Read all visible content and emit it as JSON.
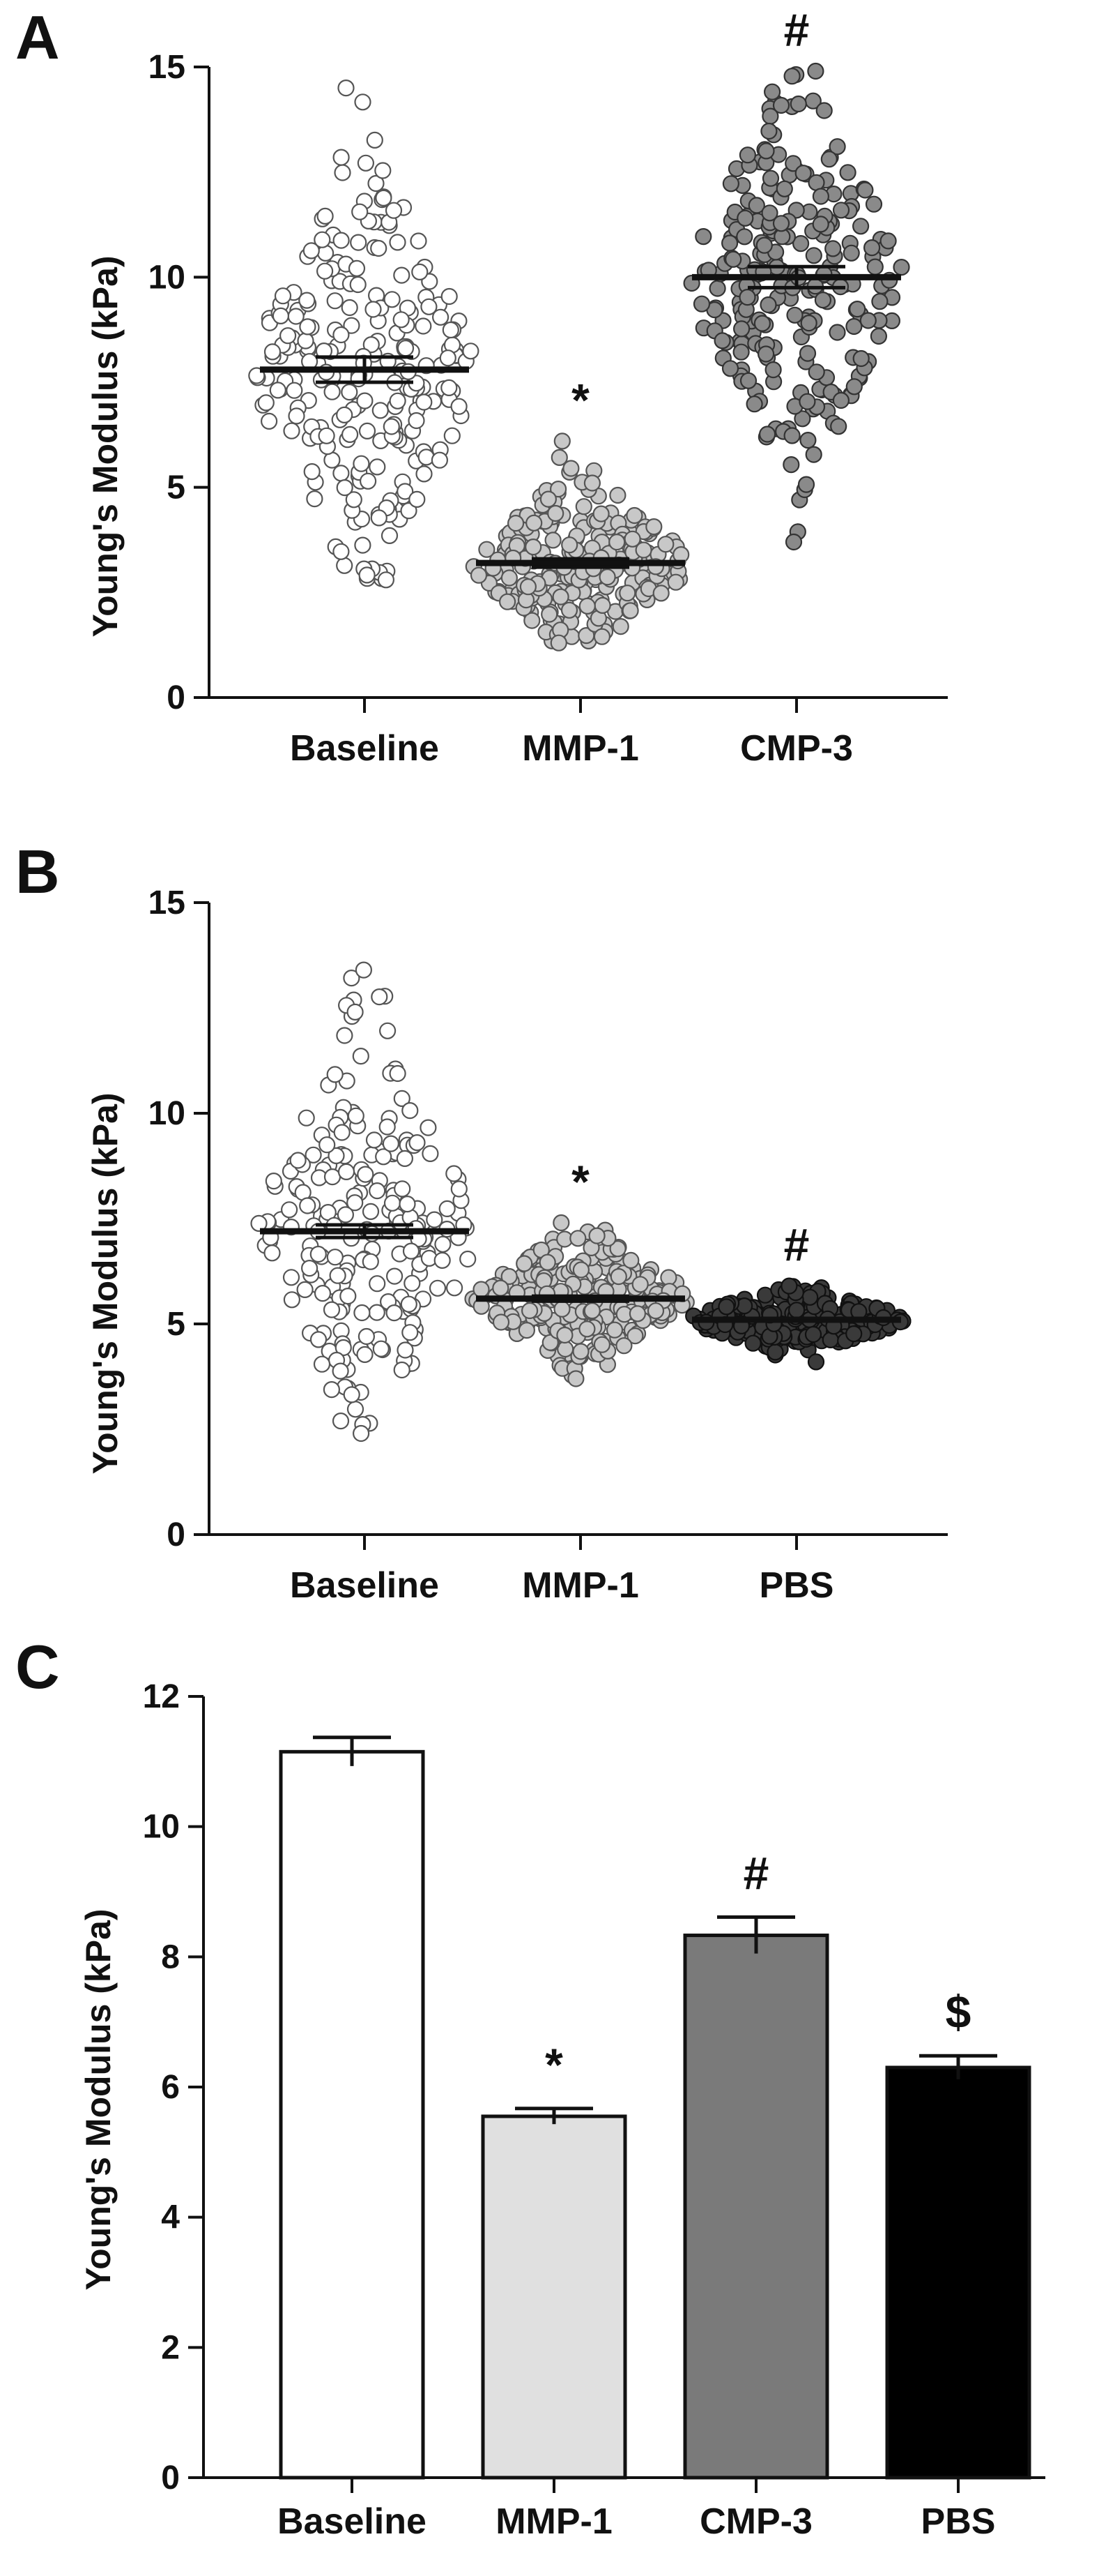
{
  "figure": {
    "panels": [
      "A",
      "B",
      "C"
    ]
  },
  "chart_data": [
    {
      "panel": "A",
      "type": "scatter",
      "title": "",
      "xlabel": "",
      "ylabel": "Young's Modulus (kPa)",
      "ylim": [
        0,
        15
      ],
      "yticks": [
        0,
        5,
        10,
        15
      ],
      "categories": [
        "Baseline",
        "MMP-1",
        "CMP-3"
      ],
      "series": [
        {
          "name": "Baseline",
          "mean": 7.8,
          "sem": 0.3,
          "min": 2.8,
          "max": 14.5,
          "color": "#ffffff",
          "stroke": "#555555",
          "annotation": ""
        },
        {
          "name": "MMP-1",
          "mean": 3.2,
          "sem": 0.1,
          "min": 1.3,
          "max": 6.1,
          "color": "#c8c8c8",
          "stroke": "#555555",
          "annotation": "*"
        },
        {
          "name": "CMP-3",
          "mean": 10.0,
          "sem": 0.25,
          "min": 3.7,
          "max": 14.9,
          "color": "#8a8a8a",
          "stroke": "#333333",
          "annotation": "#"
        }
      ]
    },
    {
      "panel": "B",
      "type": "scatter",
      "title": "",
      "xlabel": "",
      "ylabel": "Young's Modulus (kPa)",
      "ylim": [
        0,
        15
      ],
      "yticks": [
        0,
        5,
        10,
        15
      ],
      "categories": [
        "Baseline",
        "MMP-1",
        "PBS"
      ],
      "series": [
        {
          "name": "Baseline",
          "mean": 7.2,
          "sem": 0.15,
          "min": 2.4,
          "max": 13.4,
          "color": "#ffffff",
          "stroke": "#555555",
          "annotation": ""
        },
        {
          "name": "MMP-1",
          "mean": 5.6,
          "sem": 0.06,
          "min": 3.7,
          "max": 7.4,
          "color": "#c8c8c8",
          "stroke": "#555555",
          "annotation": "*"
        },
        {
          "name": "PBS",
          "mean": 5.1,
          "sem": 0.03,
          "min": 4.1,
          "max": 5.9,
          "color": "#3a3a3a",
          "stroke": "#111111",
          "annotation": "#"
        }
      ]
    },
    {
      "panel": "C",
      "type": "bar",
      "title": "",
      "xlabel": "",
      "ylabel": "Young's Modulus (kPa)",
      "ylim": [
        0,
        12
      ],
      "yticks": [
        0,
        2,
        4,
        6,
        8,
        10,
        12
      ],
      "categories": [
        "Baseline",
        "MMP-1",
        "CMP-3",
        "PBS"
      ],
      "values": [
        11.15,
        5.55,
        8.33,
        6.3
      ],
      "errors": [
        0.22,
        0.12,
        0.28,
        0.18
      ],
      "colors": [
        "#ffffff",
        "#e0e0e0",
        "#7a7a7a",
        "#000000"
      ],
      "annotations": [
        "",
        "*",
        "#",
        "$"
      ]
    }
  ]
}
